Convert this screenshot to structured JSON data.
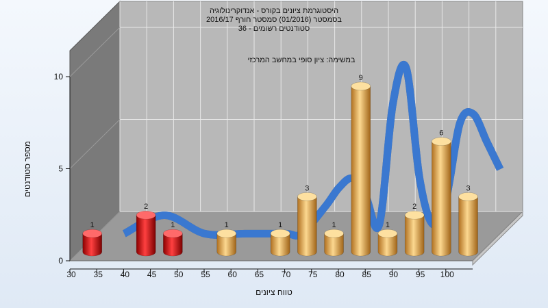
{
  "chart_data": {
    "type": "bar",
    "title_lines": [
      "היסטוגרמת ציונים בקורס - אנדוקרינולוגיה",
      "בסמסטר (01/2016) סמסטר חורף 2016/17",
      "סטודנטים רשומים - 36"
    ],
    "subtitle": "במשימה: ציון סופי במחשב המרכזי",
    "xlabel": "טווח ציונים",
    "ylabel": "מספר סטודנטים",
    "x_ticks": [
      "30",
      "35",
      "40",
      "45",
      "50",
      "55",
      "60",
      "65",
      "70",
      "75",
      "80",
      "85",
      "90",
      "95",
      "100"
    ],
    "y_ticks": [
      "0",
      "5",
      "10"
    ],
    "ylim": [
      0,
      10
    ],
    "bars": [
      {
        "bin": 32.5,
        "value": 1,
        "label": "1",
        "color": "red"
      },
      {
        "bin": 42.5,
        "value": 2,
        "label": "2",
        "color": "red"
      },
      {
        "bin": 47.5,
        "value": 1,
        "label": "1",
        "color": "red"
      },
      {
        "bin": 57.5,
        "value": 1,
        "label": "1",
        "color": "orange"
      },
      {
        "bin": 67.5,
        "value": 1,
        "label": "1",
        "color": "orange"
      },
      {
        "bin": 72.5,
        "value": 3,
        "label": "3",
        "color": "orange"
      },
      {
        "bin": 77.5,
        "value": 1,
        "label": "1",
        "color": "orange"
      },
      {
        "bin": 82.5,
        "value": 9,
        "label": "9",
        "color": "orange"
      },
      {
        "bin": 87.5,
        "value": 1,
        "label": "1",
        "color": "orange"
      },
      {
        "bin": 92.5,
        "value": 2,
        "label": "2",
        "color": "orange"
      },
      {
        "bin": 97.5,
        "value": 6,
        "label": "6",
        "color": "orange"
      },
      {
        "bin": 102.5,
        "value": 3,
        "label": "3",
        "color": "orange"
      }
    ],
    "trend_line": {
      "x": [
        35,
        42.5,
        50,
        57.5,
        65,
        68,
        72.5,
        75,
        77.5,
        80,
        82.5,
        85,
        87.5,
        90,
        92.5,
        95,
        97.5,
        100,
        102.5,
        105
      ],
      "y": [
        0,
        1,
        0,
        0,
        0,
        0,
        1.5,
        2.5,
        3,
        2,
        0.5,
        7,
        9,
        3,
        0.5,
        2,
        6,
        6.5,
        5,
        3.5
      ]
    },
    "colors": {
      "red": "#e01010",
      "orange": "#f0b048",
      "trend": "#3a78d0",
      "trend_flat": "#6a6a6a",
      "wall_back": "#b8b8b8",
      "wall_left": "#7a7a7a",
      "floor": "#9a9a9a"
    },
    "grid": true
  }
}
